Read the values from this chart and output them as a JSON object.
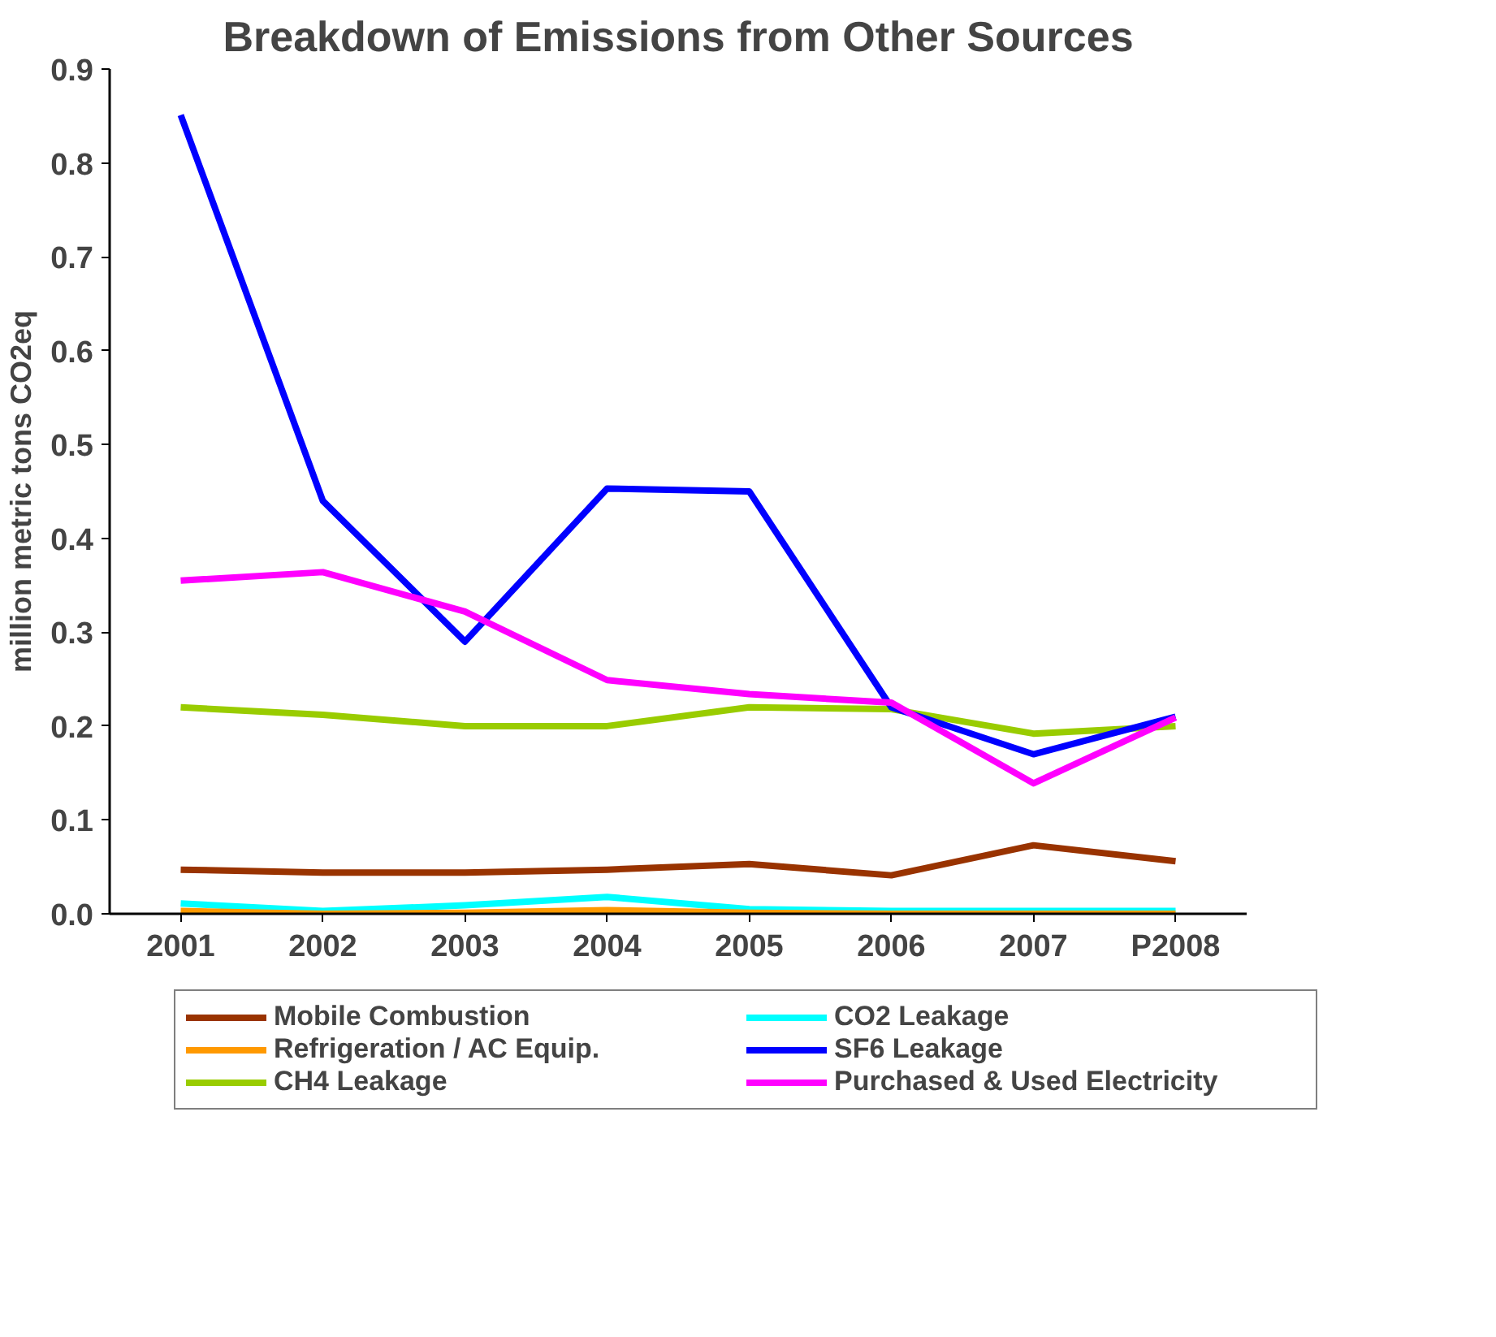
{
  "chart_data": {
    "type": "line",
    "title": "Breakdown of Emissions from Other Sources",
    "ylabel": "million metric tons CO2eq",
    "categories": [
      "2001",
      "2002",
      "2003",
      "2004",
      "2005",
      "2006",
      "2007",
      "P2008"
    ],
    "ylim": [
      0,
      0.9
    ],
    "yticks": [
      {
        "value": 0,
        "label": "0.0"
      },
      {
        "value": 0.1,
        "label": "0.1"
      },
      {
        "value": 0.2,
        "label": "0.2"
      },
      {
        "value": 0.3,
        "label": "0.3"
      },
      {
        "value": 0.4,
        "label": "0.4"
      },
      {
        "value": 0.5,
        "label": "0.5"
      },
      {
        "value": 0.6,
        "label": "0.6"
      },
      {
        "value": 0.7,
        "label": "0.7"
      },
      {
        "value": 0.8,
        "label": "0.8"
      },
      {
        "value": 0.9,
        "label": "0.9"
      }
    ],
    "grid": false,
    "legend": "bottom",
    "marker": "none",
    "line_style": "solid",
    "series": [
      {
        "name": "Mobile Combustion",
        "color": "#993300",
        "values": [
          0.047,
          0.044,
          0.044,
          0.047,
          0.053,
          0.041,
          0.073,
          0.056
        ]
      },
      {
        "name": "Refrigeration / AC Equip.",
        "color": "#ff9900",
        "values": [
          0.003,
          0.0,
          0.001,
          0.004,
          0.001,
          0.0,
          0.0,
          0.0
        ]
      },
      {
        "name": "CH4 Leakage",
        "color": "#99cc00",
        "values": [
          0.22,
          0.212,
          0.2,
          0.2,
          0.22,
          0.218,
          0.192,
          0.2
        ]
      },
      {
        "name": "CO2 Leakage",
        "color": "#00ffff",
        "values": [
          0.011,
          0.003,
          0.009,
          0.018,
          0.005,
          0.003,
          0.003,
          0.003
        ]
      },
      {
        "name": "SF6 Leakage",
        "color": "#0000ff",
        "values": [
          0.851,
          0.44,
          0.29,
          0.453,
          0.45,
          0.22,
          0.17,
          0.21
        ]
      },
      {
        "name": "Purchased & Used Electricity",
        "color": "#ff00ff",
        "values": [
          0.355,
          0.364,
          0.322,
          0.249,
          0.234,
          0.225,
          0.139,
          0.209
        ]
      }
    ]
  }
}
